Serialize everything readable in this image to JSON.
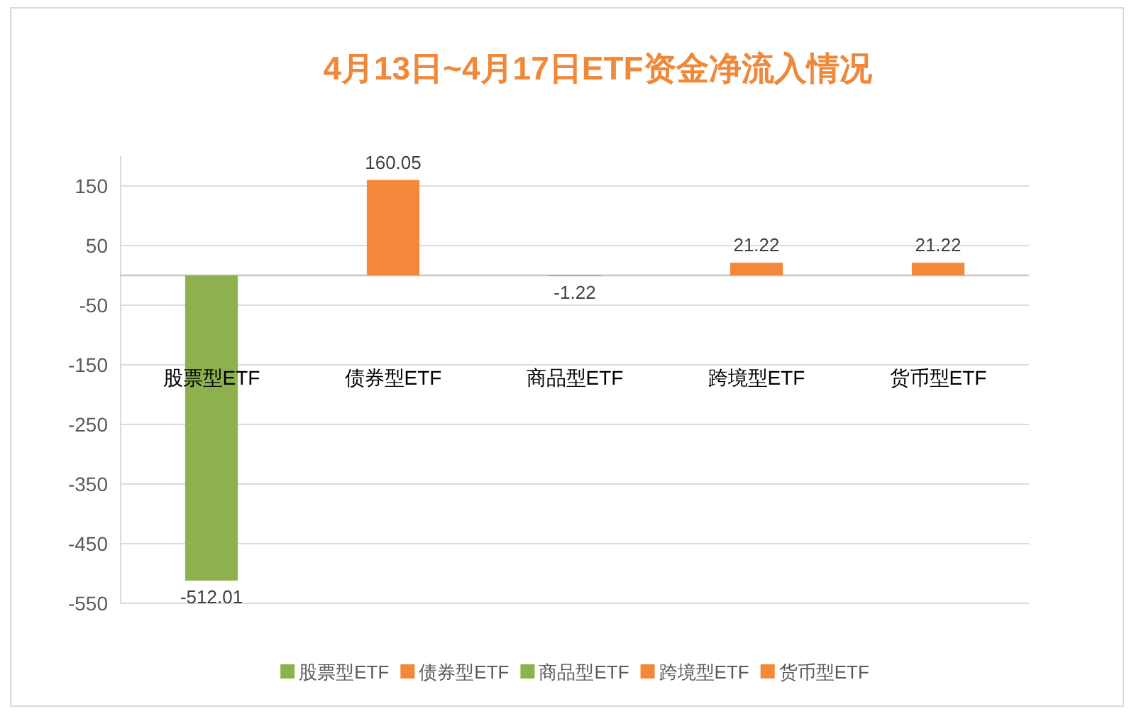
{
  "chart_data": {
    "type": "bar",
    "title": "4月13日~4月17日ETF资金净流入情况",
    "categories": [
      "股票型ETF",
      "债券型ETF",
      "商品型ETF",
      "跨境型ETF",
      "货币型ETF"
    ],
    "series": [
      {
        "name": "股票型ETF",
        "color": "#8fb04e",
        "values": [
          -512.01,
          null,
          null,
          null,
          null
        ]
      },
      {
        "name": "债券型ETF",
        "color": "#f5873a",
        "values": [
          null,
          160.05,
          null,
          null,
          null
        ]
      },
      {
        "name": "商品型ETF",
        "color": "#8fb04e",
        "values": [
          null,
          null,
          -1.22,
          null,
          null
        ]
      },
      {
        "name": "跨境型ETF",
        "color": "#f5873a",
        "values": [
          null,
          null,
          null,
          21.22,
          null
        ]
      },
      {
        "name": "货币型ETF",
        "color": "#f5873a",
        "values": [
          null,
          null,
          null,
          null,
          21.22
        ]
      }
    ],
    "stacked": true,
    "ylim": [
      -550,
      200
    ],
    "yticks": [
      -550,
      -450,
      -350,
      -250,
      -150,
      -50,
      50,
      150
    ],
    "grid": "y",
    "legend": "bottom",
    "data_labels": true
  }
}
